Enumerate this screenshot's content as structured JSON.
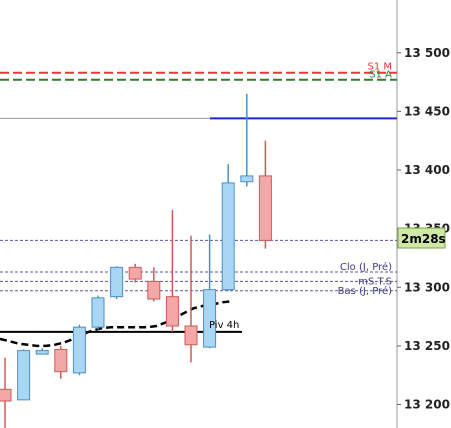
{
  "chart_data": {
    "type": "candlestick",
    "ylim": [
      13180,
      13545
    ],
    "y_ticks": [
      13200,
      13250,
      13300,
      13350,
      13400,
      13450,
      13500
    ],
    "y_tick_labels": [
      "13 200",
      "13 250",
      "13 300",
      "13 350",
      "13 400",
      "13 450",
      "13 500"
    ],
    "candles": [
      {
        "o": 13213,
        "h": 13240,
        "l": 13180,
        "c": 13203
      },
      {
        "o": 13204,
        "h": 13247,
        "l": 13204,
        "c": 13246
      },
      {
        "o": 13243,
        "h": 13248,
        "l": 13243,
        "c": 13246
      },
      {
        "o": 13247,
        "h": 13250,
        "l": 13222,
        "c": 13228
      },
      {
        "o": 13227,
        "h": 13268,
        "l": 13225,
        "c": 13266
      },
      {
        "o": 13266,
        "h": 13293,
        "l": 13264,
        "c": 13291
      },
      {
        "o": 13292,
        "h": 13318,
        "l": 13290,
        "c": 13317
      },
      {
        "o": 13317,
        "h": 13320,
        "l": 13304,
        "c": 13307
      },
      {
        "o": 13305,
        "h": 13317,
        "l": 13288,
        "c": 13290
      },
      {
        "o": 13292,
        "h": 13366,
        "l": 13262,
        "c": 13267
      },
      {
        "o": 13267,
        "h": 13344,
        "l": 13236,
        "c": 13251
      },
      {
        "o": 13249,
        "h": 13345,
        "l": 13248,
        "c": 13298
      },
      {
        "o": 13298,
        "h": 13405,
        "l": 13297,
        "c": 13389
      },
      {
        "o": 13390,
        "h": 13465,
        "l": 13386,
        "c": 13395
      },
      {
        "o": 13395,
        "h": 13425,
        "l": 13333,
        "c": 13340
      }
    ],
    "moving_average": [
      13256,
      13254,
      13252,
      13251,
      13250,
      13250,
      13251,
      13253,
      13256,
      13260,
      13263,
      13265,
      13266,
      13266,
      13266,
      13266,
      13266,
      13267,
      13270,
      13274,
      13278,
      13282,
      13284,
      13285,
      13287,
      13288
    ],
    "levels": [
      {
        "value": 13483,
        "color": "#e53935",
        "style": "dash",
        "label": "S1 M"
      },
      {
        "value": 13477,
        "color": "#2e7d32",
        "style": "dash",
        "label": "S1 A"
      },
      {
        "value": 13444,
        "color": "#1a2bd6",
        "style": "solid",
        "label": ""
      },
      {
        "value": 13340,
        "color": "#3a3a8a",
        "style": "dot",
        "label": ""
      },
      {
        "value": 13313,
        "color": "#3a3a8a",
        "style": "dot",
        "label": "Clo (J, Pré)"
      },
      {
        "value": 13305,
        "color": "#3a3a8a",
        "style": "dot",
        "label": "mS.T.S"
      },
      {
        "value": 13297,
        "color": "#3a3a8a",
        "style": "dot",
        "label": "Bas (J, Pré)"
      },
      {
        "value": 13262,
        "color": "#000000",
        "style": "bold",
        "label": "Piv 4h"
      }
    ],
    "countdown": "2m28s",
    "colors": {
      "up_fill": "#a9d6f5",
      "up_stroke": "#4a90c8",
      "down_fill": "#f4a7a7",
      "down_stroke": "#d05a5a",
      "ma": "#000000"
    }
  }
}
